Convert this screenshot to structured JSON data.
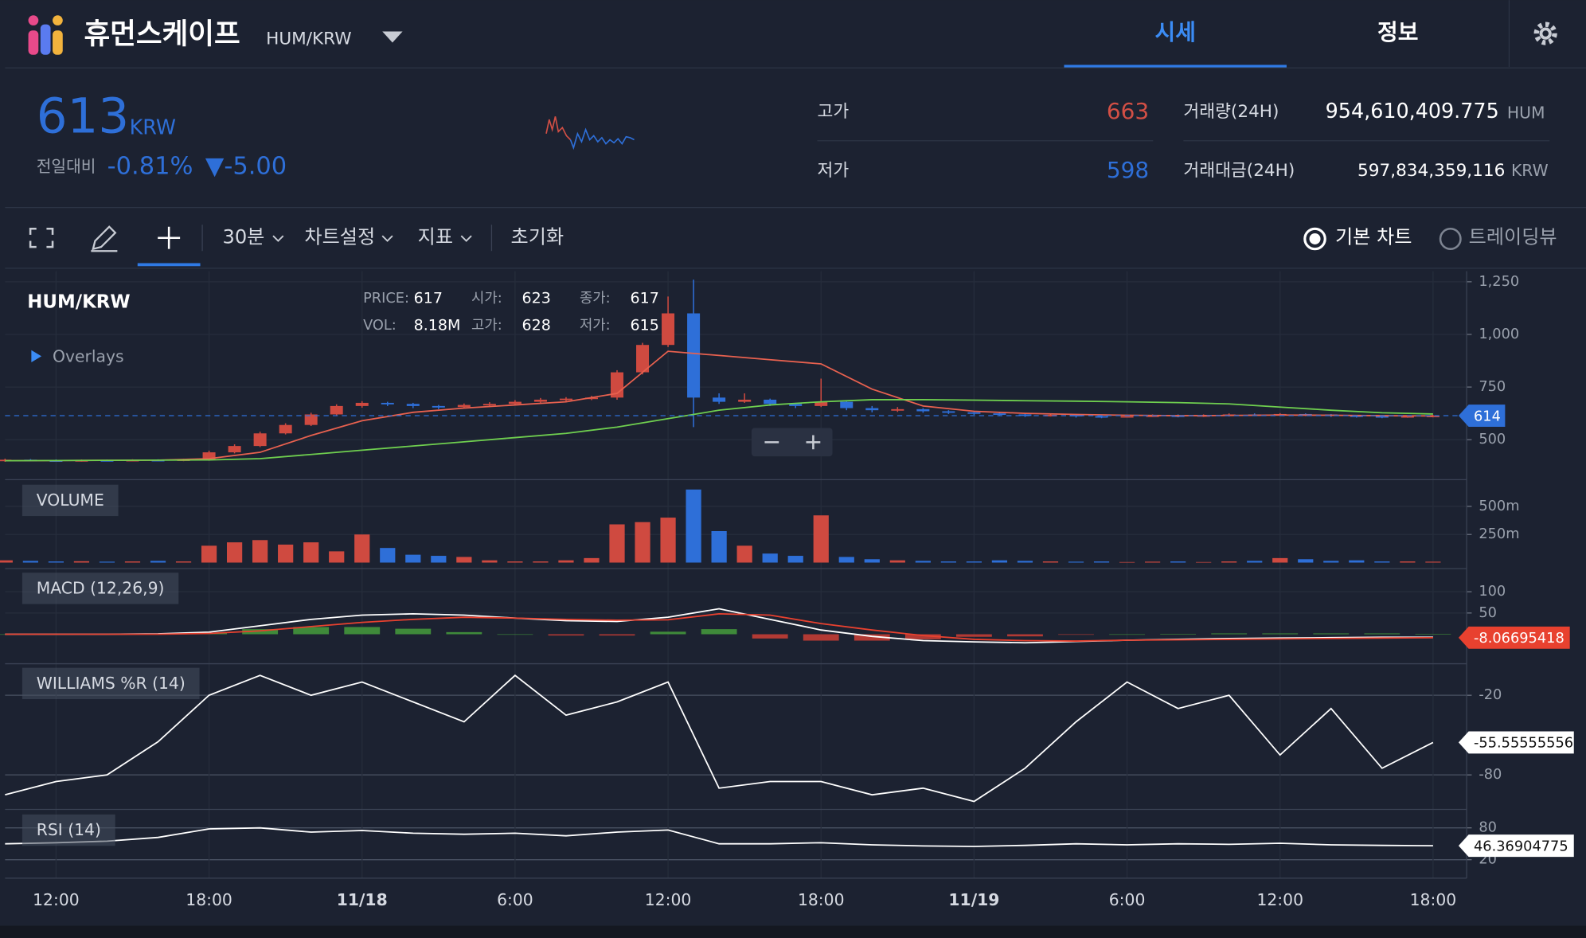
{
  "header": {
    "logo_title": "휴먼스케이프",
    "pair": "HUM/KRW",
    "tabs": [
      "시세",
      "정보"
    ]
  },
  "ticker": {
    "price": 613,
    "currency": "KRW",
    "change_label": "전일대비",
    "change_rate": "-0.81%",
    "change": "▼-5.00",
    "high_label": "고가",
    "high": 663,
    "low_label": "저가",
    "low": 598,
    "volume_label": "거래량(24H)",
    "volume": "954,610,409.775",
    "volume_unit": "HUM",
    "value_label": "거래대금(24H)",
    "value": "597,834,359,116",
    "value_unit": "KRW"
  },
  "toolbar": {
    "interval": "30분",
    "settings": "차트설정",
    "indicators": "지표",
    "reset": "초기화",
    "modes": [
      "기본 차트",
      "트레이딩뷰"
    ]
  },
  "chart_data": [
    {
      "type": "candlestick",
      "title": "HUM/KRW",
      "overlays_label": "Overlays",
      "legend": [
        {
          "label": "PRICE:",
          "value": 617
        },
        {
          "label": "시가:",
          "value": 623
        },
        {
          "label": "종가:",
          "value": 617
        },
        {
          "label": "VOL:",
          "value": "8.18M"
        },
        {
          "label": "고가:",
          "value": 628
        },
        {
          "label": "저가:",
          "value": 615
        }
      ],
      "up_color": "#cf4a40",
      "down_color": "#2e6fd8",
      "x": [
        0,
        1,
        2,
        3,
        4,
        5,
        6,
        7,
        8,
        9,
        10,
        11,
        12,
        13,
        14,
        15,
        16,
        17,
        18,
        19,
        20,
        21,
        22,
        23,
        24,
        25,
        26,
        27,
        28,
        29,
        30,
        31,
        32,
        33,
        34,
        35,
        36,
        37,
        38,
        39,
        40,
        41,
        42,
        43,
        44,
        45,
        46,
        47,
        48,
        49,
        50,
        51,
        52,
        53,
        54,
        55,
        56
      ],
      "open": [
        400,
        405,
        402,
        400,
        403,
        401,
        404,
        402,
        406,
        440,
        470,
        530,
        570,
        620,
        660,
        675,
        670,
        660,
        655,
        665,
        670,
        680,
        690,
        695,
        700,
        820,
        950,
        1100,
        700,
        680,
        690,
        670,
        660,
        680,
        650,
        640,
        645,
        635,
        630,
        625,
        620,
        615,
        618,
        612,
        610,
        612,
        615,
        613,
        616,
        620,
        618,
        622,
        620,
        615,
        612,
        610,
        612
      ],
      "high": [
        410,
        408,
        406,
        406,
        406,
        407,
        407,
        410,
        448,
        478,
        538,
        578,
        628,
        668,
        683,
        680,
        675,
        665,
        672,
        678,
        688,
        698,
        702,
        708,
        830,
        960,
        1180,
        1260,
        720,
        720,
        695,
        675,
        790,
        685,
        660,
        655,
        650,
        640,
        635,
        630,
        625,
        622,
        620,
        615,
        618,
        620,
        620,
        620,
        625,
        625,
        626,
        625,
        622,
        618,
        615,
        616,
        618
      ],
      "low": [
        395,
        398,
        395,
        396,
        397,
        398,
        398,
        398,
        400,
        435,
        465,
        525,
        565,
        612,
        652,
        660,
        650,
        645,
        650,
        660,
        665,
        672,
        682,
        688,
        690,
        810,
        940,
        560,
        670,
        675,
        660,
        650,
        655,
        640,
        630,
        632,
        628,
        622,
        618,
        612,
        608,
        610,
        605,
        602,
        605,
        608,
        606,
        608,
        610,
        612,
        614,
        612,
        608,
        605,
        602,
        604,
        606
      ],
      "close": [
        405,
        402,
        400,
        403,
        401,
        404,
        402,
        406,
        440,
        470,
        530,
        570,
        620,
        660,
        675,
        670,
        660,
        655,
        665,
        670,
        680,
        690,
        695,
        700,
        820,
        950,
        1100,
        700,
        680,
        690,
        670,
        660,
        680,
        650,
        640,
        645,
        635,
        630,
        625,
        620,
        615,
        618,
        612,
        610,
        612,
        615,
        613,
        616,
        620,
        618,
        622,
        620,
        615,
        612,
        610,
        612,
        614
      ],
      "line_x": [
        0,
        2,
        4,
        6,
        8,
        10,
        12,
        14,
        16,
        18,
        20,
        22,
        24,
        26,
        28,
        30,
        32,
        34,
        36,
        38,
        40,
        42,
        44,
        46,
        48,
        50,
        52,
        54,
        56
      ],
      "overlays": [
        {
          "color": "#e8614f",
          "values": [
            400,
            401,
            402,
            403,
            410,
            440,
            520,
            590,
            630,
            650,
            665,
            680,
            720,
            920,
            900,
            880,
            860,
            740,
            660,
            635,
            625,
            620,
            616,
            614,
            615,
            617,
            616,
            614,
            613
          ]
        },
        {
          "color": "#6fcf4f",
          "values": [
            400,
            401,
            402,
            403,
            404,
            410,
            430,
            450,
            470,
            490,
            510,
            530,
            560,
            600,
            640,
            665,
            680,
            690,
            690,
            688,
            685,
            683,
            680,
            676,
            670,
            655,
            640,
            628,
            622
          ]
        }
      ],
      "last_price": 614,
      "xlim": [
        0,
        57
      ],
      "ylim": [
        320,
        1300
      ],
      "yticks": [
        500,
        750,
        {
          "value": 1000,
          "label": "1,000"
        },
        {
          "value": 1250,
          "label": "1,250"
        }
      ]
    },
    {
      "type": "bar",
      "title": "VOLUME",
      "x": [
        0,
        1,
        2,
        3,
        4,
        5,
        6,
        7,
        8,
        9,
        10,
        11,
        12,
        13,
        14,
        15,
        16,
        17,
        18,
        19,
        20,
        21,
        22,
        23,
        24,
        25,
        26,
        27,
        28,
        29,
        30,
        31,
        32,
        33,
        34,
        35,
        36,
        37,
        38,
        39,
        40,
        41,
        42,
        43,
        44,
        45,
        46,
        47,
        48,
        49,
        50,
        51,
        52,
        53,
        54,
        55,
        56
      ],
      "values": [
        20,
        15,
        10,
        12,
        8,
        10,
        15,
        10,
        150,
        180,
        200,
        160,
        180,
        100,
        250,
        130,
        70,
        60,
        50,
        20,
        10,
        10,
        20,
        40,
        340,
        360,
        400,
        650,
        280,
        150,
        80,
        60,
        420,
        50,
        30,
        20,
        15,
        10,
        10,
        20,
        15,
        10,
        8,
        10,
        5,
        8,
        10,
        5,
        10,
        15,
        40,
        30,
        15,
        20,
        10,
        10,
        8
      ],
      "xlim": [
        0,
        57
      ],
      "ylim": [
        0,
        720
      ],
      "yticks": [
        {
          "value": 250,
          "label": "250m"
        },
        {
          "value": 500,
          "label": "500m"
        }
      ]
    },
    {
      "type": "macd",
      "title": "MACD (12,26,9)",
      "x": [
        0,
        2,
        4,
        6,
        8,
        10,
        12,
        14,
        16,
        18,
        20,
        22,
        24,
        26,
        28,
        30,
        32,
        34,
        36,
        38,
        40,
        42,
        44,
        46,
        48,
        50,
        52,
        54,
        56
      ],
      "series": [
        {
          "color": "#ffffff",
          "values": [
            0,
            0,
            0,
            1,
            5,
            20,
            35,
            45,
            48,
            45,
            38,
            32,
            30,
            40,
            60,
            35,
            10,
            -5,
            -15,
            -18,
            -20,
            -17,
            -14,
            -12,
            -10,
            -9,
            -8,
            -7,
            -7
          ]
        },
        {
          "color": "#e8412f",
          "values": [
            0,
            0,
            0,
            0,
            2,
            8,
            18,
            28,
            35,
            40,
            38,
            35,
            33,
            34,
            48,
            45,
            25,
            10,
            -3,
            -12,
            -15,
            -16,
            -14,
            -13,
            -12,
            -11,
            -10,
            -9,
            -8.06695418
          ]
        }
      ],
      "histogram": {
        "up_color": "#3f8a3a",
        "down_color": "#b23a34",
        "values": [
          0,
          0,
          0,
          1,
          3,
          12,
          17,
          17,
          13,
          5,
          0,
          -3,
          -3,
          6,
          12,
          -10,
          -15,
          -15,
          -12,
          -6,
          -5,
          -1,
          0,
          1,
          2,
          2,
          2,
          2,
          1
        ]
      },
      "xlim": [
        0,
        57
      ],
      "ylim": [
        -67,
        152
      ],
      "yticks": [
        50,
        100
      ]
    },
    {
      "type": "line",
      "title": "WILLIAMS %R (14)",
      "color": "#ffffff",
      "x": [
        0,
        2,
        4,
        6,
        8,
        10,
        12,
        14,
        16,
        18,
        20,
        22,
        24,
        26,
        28,
        30,
        32,
        34,
        36,
        38,
        40,
        42,
        44,
        46,
        48,
        50,
        52,
        54,
        56
      ],
      "values": [
        -95,
        -85,
        -80,
        -55,
        -20,
        -5,
        -20,
        -10,
        -25,
        -40,
        -5,
        -35,
        -25,
        -10,
        -90,
        -85,
        -85,
        -95,
        -90,
        -100,
        -75,
        -40,
        -10,
        -30,
        -20,
        -65,
        -30,
        -75,
        -55.55555556
      ],
      "xlim": [
        0,
        57
      ],
      "ylim": [
        -106,
        3
      ],
      "yticks": [
        -80,
        -20
      ]
    },
    {
      "type": "line",
      "title": "RSI (14)",
      "color": "#ffffff",
      "x": [
        0,
        2,
        4,
        6,
        8,
        10,
        12,
        14,
        16,
        18,
        20,
        22,
        24,
        26,
        28,
        30,
        32,
        34,
        36,
        38,
        40,
        42,
        44,
        46,
        48,
        50,
        52,
        54,
        56
      ],
      "values": [
        50,
        52,
        55,
        62,
        78,
        80,
        72,
        75,
        70,
        68,
        70,
        65,
        72,
        76,
        50,
        50,
        52,
        48,
        46,
        45,
        47,
        50,
        48,
        50,
        49,
        51,
        48,
        47,
        46.36904775
      ],
      "xlim": [
        0,
        57
      ],
      "ylim": [
        -11,
        111
      ],
      "yticks": [
        20,
        80
      ],
      "xticks": [
        {
          "value": 2,
          "label": "12:00"
        },
        {
          "value": 8,
          "label": "18:00"
        },
        {
          "value": 14,
          "label": "11/18"
        },
        {
          "value": 20,
          "label": "6:00"
        },
        {
          "value": 26,
          "label": "12:00"
        },
        {
          "value": 32,
          "label": "18:00"
        },
        {
          "value": 38,
          "label": "11/19"
        },
        {
          "value": 44,
          "label": "6:00"
        },
        {
          "value": 50,
          "label": "12:00"
        },
        {
          "value": 56,
          "label": "18:00"
        }
      ]
    }
  ]
}
